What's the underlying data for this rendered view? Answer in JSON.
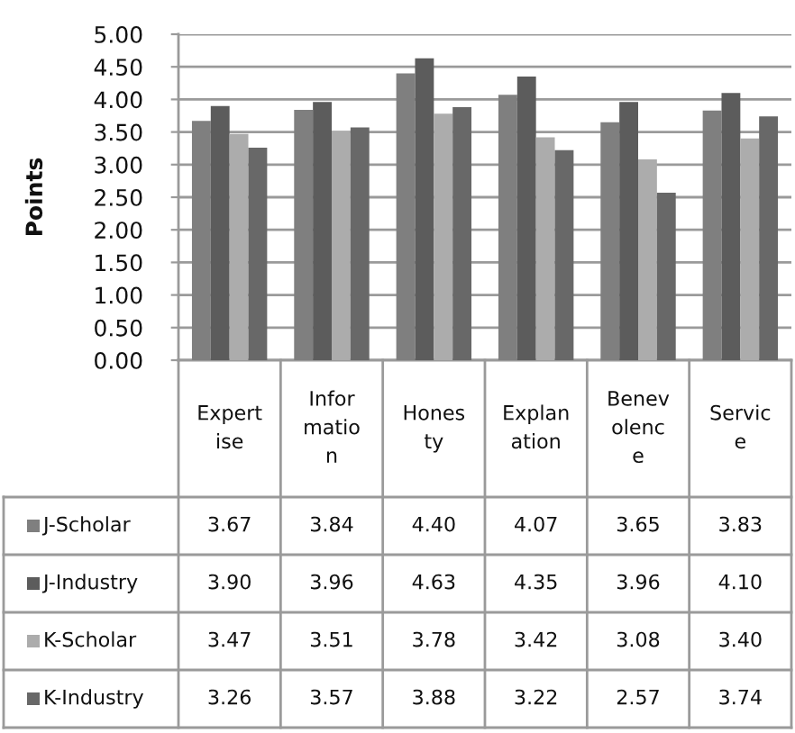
{
  "chart_data": {
    "type": "bar",
    "ylabel": "Points",
    "categories": [
      "Expert\nise",
      "Infor\nmatio\nn",
      "Hones\nty",
      "Explan\nation",
      "Benev\nolenc\ne",
      "Servic\ne"
    ],
    "series": [
      {
        "name": "J-Scholar",
        "color": "#7f7f7f",
        "values": [
          3.67,
          3.84,
          4.4,
          4.07,
          3.65,
          3.83
        ],
        "value_labels": [
          "3.67",
          "3.84",
          "4.40",
          "4.07",
          "3.65",
          "3.83"
        ]
      },
      {
        "name": "J-Industry",
        "color": "#5c5c5c",
        "values": [
          3.9,
          3.96,
          4.63,
          4.35,
          3.96,
          4.1
        ],
        "value_labels": [
          "3.90",
          "3.96",
          "4.63",
          "4.35",
          "3.96",
          "4.10"
        ]
      },
      {
        "name": "K-Scholar",
        "color": "#acacac",
        "values": [
          3.47,
          3.51,
          3.78,
          3.42,
          3.08,
          3.4
        ],
        "value_labels": [
          "3.47",
          "3.51",
          "3.78",
          "3.42",
          "3.08",
          "3.40"
        ]
      },
      {
        "name": "K-Industry",
        "color": "#686868",
        "values": [
          3.26,
          3.57,
          3.88,
          3.22,
          2.57,
          3.74
        ],
        "value_labels": [
          "3.26",
          "3.57",
          "3.88",
          "3.22",
          "2.57",
          "3.74"
        ]
      }
    ],
    "ylim": [
      0,
      5
    ],
    "yticks": [
      {
        "value": 0,
        "label": "0.00"
      },
      {
        "value": 0.5,
        "label": "0.50"
      },
      {
        "value": 1,
        "label": "1.00"
      },
      {
        "value": 1.5,
        "label": "1.50"
      },
      {
        "value": 2,
        "label": "2.00"
      },
      {
        "value": 2.5,
        "label": "2.50"
      },
      {
        "value": 3,
        "label": "3.00"
      },
      {
        "value": 3.5,
        "label": "3.50"
      },
      {
        "value": 4,
        "label": "4.00"
      },
      {
        "value": 4.5,
        "label": "4.50"
      },
      {
        "value": 5,
        "label": "5.00"
      }
    ],
    "grid": "y",
    "legend": "bottom"
  }
}
